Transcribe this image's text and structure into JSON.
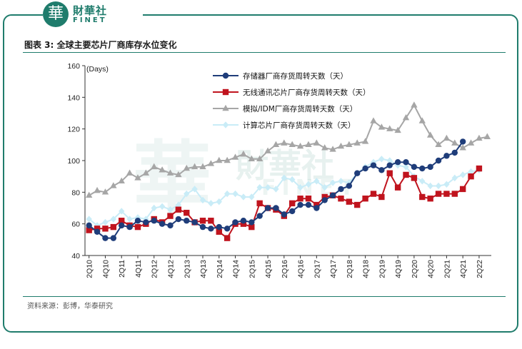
{
  "brand": {
    "cn": "財華社",
    "en": "FINET",
    "seal": "華"
  },
  "watermark": {
    "seal": "華",
    "cn": "財華社",
    "en": "FINET"
  },
  "figure_title": "图表 3:  全球主要芯片厂商库存水位变化",
  "source_note": "资料来源：彭博，华泰研究",
  "colors": {
    "frame": "#1f7c6c",
    "memory": "#1f3d7a",
    "wireless": "#c0141e",
    "analog": "#a6a6a6",
    "computing": "#c9ecf7"
  },
  "chart_data": {
    "type": "line",
    "title": "",
    "ylabel": "(Days)",
    "xlabel": "",
    "ylim": [
      40,
      160
    ],
    "yticks": [
      40,
      60,
      80,
      100,
      120,
      140,
      160
    ],
    "grid": false,
    "legend_position": "top-center",
    "x": [
      "2Q10",
      "3Q10",
      "4Q10",
      "1Q11",
      "2Q11",
      "3Q11",
      "4Q11",
      "1Q12",
      "2Q12",
      "3Q12",
      "4Q12",
      "1Q13",
      "2Q13",
      "3Q13",
      "4Q13",
      "1Q14",
      "2Q14",
      "3Q14",
      "4Q14",
      "1Q15",
      "2Q15",
      "3Q15",
      "4Q15",
      "1Q16",
      "2Q16",
      "3Q16",
      "4Q16",
      "1Q17",
      "2Q17",
      "3Q17",
      "4Q17",
      "1Q18",
      "2Q18",
      "3Q18",
      "4Q18",
      "1Q19",
      "2Q19",
      "3Q19",
      "4Q19",
      "1Q20",
      "2Q20",
      "3Q20",
      "4Q20",
      "1Q21",
      "2Q21",
      "3Q21",
      "4Q21",
      "1Q22",
      "2Q22",
      "3Q22"
    ],
    "xtick_labels": [
      "2Q10",
      "4Q10",
      "2Q11",
      "4Q11",
      "2Q12",
      "4Q12",
      "2Q13",
      "4Q13",
      "2Q14",
      "4Q14",
      "2Q15",
      "4Q15",
      "2Q16",
      "4Q16",
      "2Q17",
      "4Q17",
      "2Q18",
      "4Q18",
      "2Q19",
      "4Q19",
      "2Q20",
      "4Q20",
      "2Q21",
      "4Q21",
      "2Q22"
    ],
    "series": [
      {
        "name": "存储器厂商存货周转天数（天）",
        "marker": "circle",
        "values": [
          59,
          55,
          51,
          51,
          59,
          58,
          62,
          61,
          62,
          60,
          59,
          63,
          62,
          61,
          58,
          57,
          58,
          57,
          61,
          62,
          61,
          65,
          70,
          70,
          66,
          68,
          72,
          72,
          70,
          75,
          78,
          82,
          84,
          92,
          95,
          97,
          94,
          97,
          99,
          99,
          96,
          95,
          96,
          100,
          103,
          105,
          112,
          null,
          null,
          null
        ]
      },
      {
        "name": "无线通讯芯片厂商存货周转天数（天）",
        "marker": "square",
        "values": [
          56,
          57,
          57,
          58,
          62,
          59,
          58,
          60,
          63,
          61,
          65,
          69,
          67,
          61,
          62,
          62,
          55,
          51,
          60,
          60,
          58,
          73,
          70,
          69,
          65,
          73,
          76,
          76,
          72,
          77,
          78,
          76,
          74,
          72,
          76,
          79,
          77,
          92,
          83,
          91,
          89,
          77,
          76,
          79,
          79,
          79,
          82,
          90,
          95,
          null
        ]
      },
      {
        "name": "模拟/IDM厂商存货周转天数（天）",
        "marker": "triangle",
        "values": [
          78,
          81,
          80,
          84,
          87,
          92,
          89,
          92,
          96,
          94,
          92,
          91,
          95,
          96,
          96,
          98,
          100,
          100,
          102,
          104,
          101,
          101,
          106,
          110,
          111,
          110,
          109,
          110,
          111,
          108,
          107,
          109,
          110,
          111,
          112,
          125,
          121,
          120,
          119,
          127,
          135,
          125,
          116,
          110,
          114,
          111,
          108,
          111,
          114,
          115
        ]
      },
      {
        "name": "计算芯片厂商存货周转天数（天）",
        "marker": "diamond",
        "values": [
          63,
          59,
          61,
          63,
          68,
          63,
          64,
          63,
          70,
          71,
          69,
          72,
          79,
          82,
          75,
          73,
          74,
          79,
          79,
          77,
          77,
          83,
          83,
          82,
          89,
          88,
          83,
          85,
          87,
          83,
          86,
          87,
          86,
          92,
          96,
          99,
          101,
          100,
          97,
          96,
          90,
          87,
          84,
          84,
          85,
          89,
          91,
          93,
          94,
          null
        ]
      }
    ]
  }
}
